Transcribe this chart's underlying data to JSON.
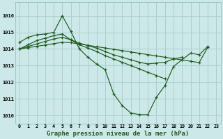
{
  "background_color": "#cce8e8",
  "grid_color": "#aacfcf",
  "line_color": "#1e5c1e",
  "marker_color": "#1e5c1e",
  "title": "Graphe pression niveau de la mer (hPa)",
  "title_fontsize": 6.5,
  "ylim": [
    1009.5,
    1016.8
  ],
  "xlim": [
    -0.5,
    23.5
  ],
  "yticks": [
    1010,
    1011,
    1012,
    1013,
    1014,
    1015,
    1016
  ],
  "xtick_labels": [
    "0",
    "1",
    "2",
    "3",
    "4",
    "5",
    "6",
    "7",
    "8",
    "9",
    "10",
    "11",
    "12",
    "13",
    "14",
    "15",
    "16",
    "17",
    "18",
    "19",
    "20",
    "21",
    "22",
    "23"
  ],
  "series": [
    {
      "x": [
        0,
        1,
        2,
        3,
        4,
        5,
        6,
        7,
        8,
        9,
        10,
        11,
        12,
        13,
        14,
        15,
        16,
        17,
        18,
        19,
        20,
        21,
        22
      ],
      "y": [
        1014.4,
        1014.7,
        1014.85,
        1014.9,
        1015.0,
        1016.0,
        1015.05,
        1014.0,
        1013.5,
        1013.1,
        1012.75,
        1011.3,
        1010.6,
        1010.15,
        1010.05,
        1010.05,
        1011.1,
        1011.8,
        1012.95,
        1013.35,
        1013.75,
        1013.65,
        1014.15
      ]
    },
    {
      "x": [
        0,
        1,
        2,
        3,
        4,
        5,
        6,
        7,
        8,
        9,
        10,
        11,
        12,
        13,
        14,
        15,
        16,
        17
      ],
      "y": [
        1014.0,
        1014.25,
        1014.5,
        1014.65,
        1014.8,
        1014.9,
        1014.55,
        1014.25,
        1014.05,
        1013.85,
        1013.6,
        1013.4,
        1013.2,
        1013.0,
        1012.8,
        1012.6,
        1012.4,
        1012.2
      ]
    },
    {
      "x": [
        0,
        1,
        2,
        3,
        4,
        5,
        6,
        7,
        8,
        9,
        10,
        11,
        12,
        13,
        14,
        15,
        16,
        17,
        18,
        19
      ],
      "y": [
        1014.0,
        1014.15,
        1014.3,
        1014.45,
        1014.6,
        1014.7,
        1014.55,
        1014.35,
        1014.2,
        1014.05,
        1013.85,
        1013.65,
        1013.5,
        1013.35,
        1013.2,
        1013.1,
        1013.15,
        1013.2,
        1013.4,
        1013.5
      ]
    },
    {
      "x": [
        0,
        1,
        2,
        3,
        4,
        5,
        6,
        7,
        8,
        9,
        10,
        11,
        12,
        13,
        14,
        15,
        16,
        17,
        18,
        19,
        20,
        21,
        22
      ],
      "y": [
        1014.0,
        1014.08,
        1014.16,
        1014.24,
        1014.32,
        1014.4,
        1014.38,
        1014.3,
        1014.22,
        1014.14,
        1014.06,
        1013.98,
        1013.9,
        1013.82,
        1013.74,
        1013.66,
        1013.58,
        1013.5,
        1013.42,
        1013.34,
        1013.26,
        1013.18,
        1014.1
      ]
    }
  ]
}
